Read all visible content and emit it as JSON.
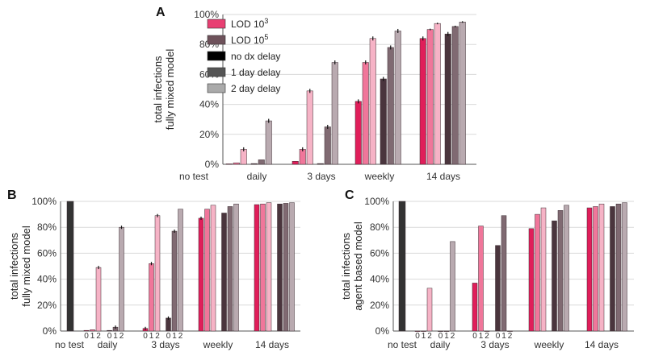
{
  "figure": {
    "legend": [
      {
        "label": "LOD 10",
        "sup": "3",
        "color": "#e83f72"
      },
      {
        "label": "LOD 10",
        "sup": "5",
        "color": "#6e525b"
      },
      {
        "label": "no dx delay",
        "color": "#000000"
      },
      {
        "label": "1 day delay",
        "color": "#555555"
      },
      {
        "label": "2 day delay",
        "color": "#aaaaaa"
      }
    ],
    "colors": {
      "lod3": [
        "#e01e5a",
        "#f0769a",
        "#f6b3c6"
      ],
      "lod5": [
        "#4a353d",
        "#806a72",
        "#b9aab0"
      ],
      "notest": "#333333",
      "grid": "#d9d9d9"
    }
  },
  "chart_data": [
    {
      "panel": "A",
      "type": "bar",
      "ylabel": [
        "total infections",
        "fully mixed model"
      ],
      "ylim": [
        0,
        100
      ],
      "yticks": [
        "0%",
        "20%",
        "40%",
        "60%",
        "80%",
        "100%"
      ],
      "grid": true,
      "legend_position": "top-left",
      "categories": [
        "no test",
        "daily",
        "3 days",
        "weekly",
        "14 days"
      ],
      "series": [
        {
          "name": "LOD 10^3",
          "delays": [
            0,
            1,
            2
          ],
          "values": [
            [
              0,
              0,
              0
            ],
            [
              0.3,
              1,
              10
            ],
            [
              2,
              10,
              49
            ],
            [
              42,
              68,
              84
            ],
            [
              84,
              90,
              94
            ]
          ]
        },
        {
          "name": "LOD 10^5",
          "delays": [
            0,
            1,
            2
          ],
          "values": [
            [
              0,
              0,
              0
            ],
            [
              0.5,
              3,
              29
            ],
            [
              0.5,
              25,
              68
            ],
            [
              57,
              78,
              89
            ],
            [
              87,
              92,
              95
            ]
          ]
        }
      ]
    },
    {
      "panel": "B",
      "type": "bar",
      "ylabel": [
        "total infections",
        "fully mixed model"
      ],
      "ylim": [
        0,
        100
      ],
      "yticks": [
        "0%",
        "20%",
        "40%",
        "60%",
        "80%",
        "100%"
      ],
      "grid": true,
      "categories": [
        "no test",
        "daily",
        "3 days",
        "weekly",
        "14 days"
      ],
      "delay_tick_labels": [
        "0",
        "1",
        "2"
      ],
      "notest_value": 100,
      "series": [
        {
          "name": "LOD 10^3",
          "values": [
            [
              0.5,
              1,
              49
            ],
            [
              2,
              52,
              89
            ],
            [
              87,
              94,
              97
            ],
            [
              97.5,
              98,
              99
            ]
          ]
        },
        {
          "name": "LOD 10^5",
          "values": [
            [
              0.5,
              3,
              80
            ],
            [
              10,
              77,
              94
            ],
            [
              91,
              96,
              98
            ],
            [
              98,
              98.5,
              99
            ]
          ]
        }
      ]
    },
    {
      "panel": "C",
      "type": "bar",
      "ylabel": [
        "total infections",
        "agent based model"
      ],
      "ylim": [
        0,
        100
      ],
      "yticks": [
        "0%",
        "20%",
        "40%",
        "60%",
        "80%",
        "100%"
      ],
      "grid": true,
      "categories": [
        "no test",
        "daily",
        "3 days",
        "weekly",
        "14 days"
      ],
      "delay_tick_labels": [
        "0",
        "1",
        "2"
      ],
      "notest_value": 100,
      "series": [
        {
          "name": "LOD 10^3",
          "values": [
            [
              0,
              0,
              33
            ],
            [
              37,
              81,
              0
            ],
            [
              79,
              90,
              95
            ],
            [
              95,
              96,
              98
            ]
          ]
        },
        {
          "name": "LOD 10^5",
          "values": [
            [
              0,
              0,
              69
            ],
            [
              66,
              89,
              0
            ],
            [
              85,
              93,
              97
            ],
            [
              96,
              98,
              99
            ]
          ]
        }
      ]
    }
  ]
}
